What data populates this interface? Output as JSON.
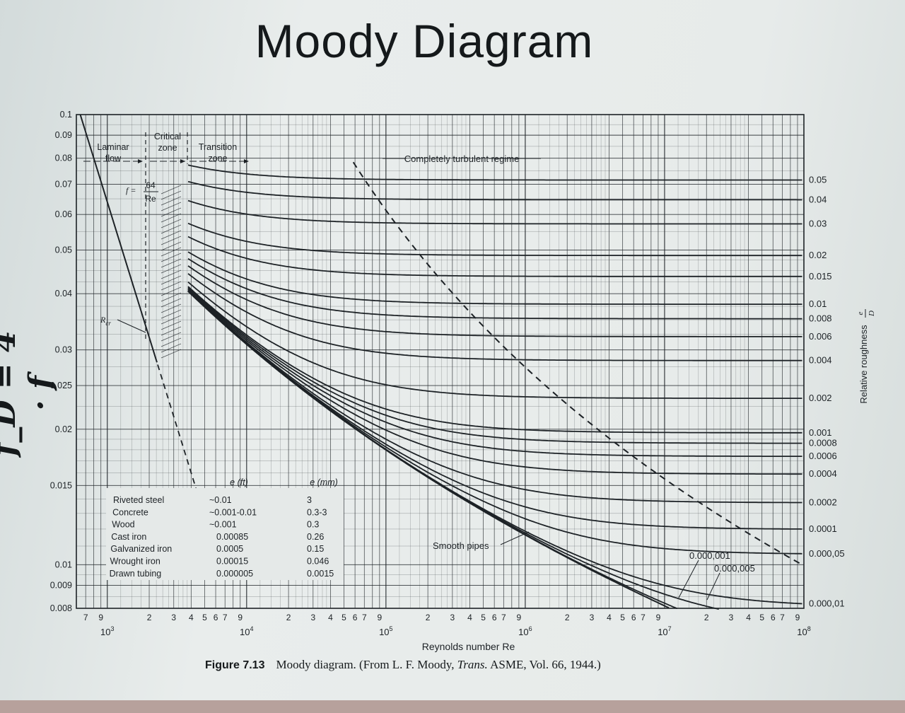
{
  "title": "Moody Diagram",
  "fd_label": "f_D = 4 · f",
  "caption": {
    "figure": "Figure 7.13",
    "pre": "Moody diagram. (From L. F. Moody, ",
    "journal": "Trans.",
    "post": " ASME, Vol. 66, 1944.)"
  },
  "chart_data": {
    "type": "line",
    "xscale": "log",
    "yscale": "log",
    "xlim": [
      600,
      100000000
    ],
    "ylim": [
      0.008,
      0.1
    ],
    "xlabel": "Reynolds number Re",
    "ylabel_right": "Relative roughness",
    "ylabel_right_math": [
      "e",
      "D"
    ],
    "y_ticks": [
      "0.1",
      "0.09",
      "0.08",
      "0.07",
      "0.06",
      "0.05",
      "0.04",
      "0.03",
      "0.025",
      "0.02",
      "0.015",
      "0.01",
      "0.009",
      "0.008"
    ],
    "y_tick_values": [
      0.1,
      0.09,
      0.08,
      0.07,
      0.06,
      0.05,
      0.04,
      0.03,
      0.025,
      0.02,
      0.015,
      0.01,
      0.009,
      0.008
    ],
    "x_minor_ticks": [
      {
        "x": 700,
        "label": "7"
      },
      {
        "x": 900,
        "label": "9"
      },
      {
        "x": 2000,
        "label": "2"
      },
      {
        "x": 3000,
        "label": "3"
      },
      {
        "x": 4000,
        "label": "4"
      },
      {
        "x": 5000,
        "label": "5"
      },
      {
        "x": 6000,
        "label": "6"
      },
      {
        "x": 7000,
        "label": "7"
      },
      {
        "x": 9000,
        "label": "9"
      },
      {
        "x": 20000,
        "label": "2"
      },
      {
        "x": 30000,
        "label": "3"
      },
      {
        "x": 40000,
        "label": "4"
      },
      {
        "x": 50000,
        "label": "5"
      },
      {
        "x": 60000,
        "label": "6"
      },
      {
        "x": 70000,
        "label": "7"
      },
      {
        "x": 90000,
        "label": "9"
      },
      {
        "x": 200000,
        "label": "2"
      },
      {
        "x": 300000,
        "label": "3"
      },
      {
        "x": 400000,
        "label": "4"
      },
      {
        "x": 500000,
        "label": "5"
      },
      {
        "x": 600000,
        "label": "6"
      },
      {
        "x": 700000,
        "label": "7"
      },
      {
        "x": 900000,
        "label": "9"
      },
      {
        "x": 2000000,
        "label": "2"
      },
      {
        "x": 3000000,
        "label": "3"
      },
      {
        "x": 4000000,
        "label": "4"
      },
      {
        "x": 5000000,
        "label": "5"
      },
      {
        "x": 6000000,
        "label": "6"
      },
      {
        "x": 7000000,
        "label": "7"
      },
      {
        "x": 9000000,
        "label": "9"
      },
      {
        "x": 20000000,
        "label": "2"
      },
      {
        "x": 30000000,
        "label": "3"
      },
      {
        "x": 40000000,
        "label": "4"
      },
      {
        "x": 50000000,
        "label": "5"
      },
      {
        "x": 60000000,
        "label": "6"
      },
      {
        "x": 70000000,
        "label": "7"
      },
      {
        "x": 90000000,
        "label": "9"
      }
    ],
    "x_decades": [
      {
        "x": 1000,
        "base": "10",
        "exp": "3"
      },
      {
        "x": 10000,
        "base": "10",
        "exp": "4"
      },
      {
        "x": 100000,
        "base": "10",
        "exp": "5"
      },
      {
        "x": 1000000,
        "base": "10",
        "exp": "6"
      },
      {
        "x": 10000000,
        "base": "10",
        "exp": "7"
      },
      {
        "x": 100000000,
        "base": "10",
        "exp": "8"
      }
    ],
    "laminar": {
      "formula": "64/Re",
      "x_start": 640,
      "x_end": 2300,
      "dashed_end": 4500,
      "label_f": "f =",
      "label_num": "64",
      "label_den": "Re"
    },
    "rcr_label": "R",
    "rcr_sub": "cr",
    "zones": [
      {
        "name": "laminar",
        "lines": [
          "Laminar",
          "flow"
        ]
      },
      {
        "name": "critical",
        "lines": [
          "Critical",
          "zone"
        ]
      },
      {
        "name": "transition",
        "lines": [
          "Transition",
          "zone"
        ]
      }
    ],
    "regime_label": "Completely turbulent regime",
    "smooth_label": "Smooth pipes",
    "roughness_curves": [
      {
        "label": "0.05",
        "value": 0.05
      },
      {
        "label": "0.04",
        "value": 0.04
      },
      {
        "label": "0.03",
        "value": 0.03
      },
      {
        "label": "0.02",
        "value": 0.02
      },
      {
        "label": "0.015",
        "value": 0.015
      },
      {
        "label": "0.01",
        "value": 0.01
      },
      {
        "label": "0.008",
        "value": 0.008
      },
      {
        "label": "0.006",
        "value": 0.006
      },
      {
        "label": "0.004",
        "value": 0.004
      },
      {
        "label": "0.002",
        "value": 0.002
      },
      {
        "label": "0.001",
        "value": 0.001
      },
      {
        "label": "0.0008",
        "value": 0.0008
      },
      {
        "label": "0.0006",
        "value": 0.0006
      },
      {
        "label": "0.0004",
        "value": 0.0004
      },
      {
        "label": "0.0002",
        "value": 0.0002
      },
      {
        "label": "0.0001",
        "value": 0.0001
      },
      {
        "label": "0.000,05",
        "value": 5e-05
      },
      {
        "label": "0.000,01",
        "value": 1e-05
      },
      {
        "label": "0.000,005",
        "value": 5e-06,
        "inline": true
      },
      {
        "label": "0.000,001",
        "value": 1e-06,
        "inline": true
      }
    ],
    "materials_table": {
      "headers": [
        "e (ft)",
        "e (mm)"
      ],
      "rows": [
        {
          "material": "Riveted steel",
          "ft": "~0.01",
          "mm": "3"
        },
        {
          "material": "Concrete",
          "ft": "~0.001-0.01",
          "mm": "0.3-3"
        },
        {
          "material": "Wood",
          "ft": "~0.001",
          "mm": "0.3"
        },
        {
          "material": "Cast iron",
          "ft": "0.00085",
          "mm": "0.26"
        },
        {
          "material": "Galvanized iron",
          "ft": "0.0005",
          "mm": "0.15"
        },
        {
          "material": "Wrought iron",
          "ft": "0.00015",
          "mm": "0.046"
        },
        {
          "material": "Drawn tubing",
          "ft": "0.000005",
          "mm": "0.0015"
        }
      ]
    },
    "grid": true
  }
}
